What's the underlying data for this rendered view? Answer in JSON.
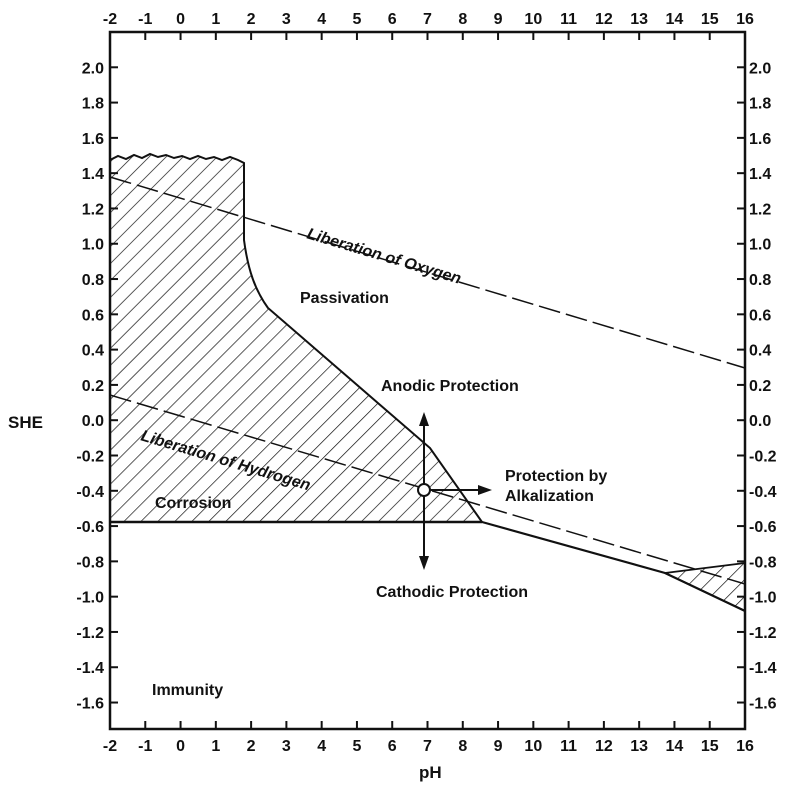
{
  "axes": {
    "x_title": "pH",
    "y_title": "SHE",
    "x_ticks": [
      "-2",
      "-1",
      "0",
      "1",
      "2",
      "3",
      "4",
      "5",
      "6",
      "7",
      "8",
      "9",
      "10",
      "11",
      "12",
      "13",
      "14",
      "15",
      "16"
    ],
    "y_ticks": [
      "2.0",
      "1.8",
      "1.6",
      "1.4",
      "1.2",
      "1.0",
      "0.8",
      "0.6",
      "0.4",
      "0.2",
      "0.0",
      "-0.2",
      "-0.4",
      "-0.6",
      "-0.8",
      "-1.0",
      "-1.2",
      "-1.4",
      "-1.6"
    ],
    "x_range": [
      -2,
      16
    ],
    "y_range": [
      -1.75,
      2.2
    ]
  },
  "regions": {
    "passivation": "Passivation",
    "corrosion": "Corrosion",
    "immunity": "Immunity",
    "anodic": "Anodic Protection",
    "cathodic": "Cathodic Protection",
    "alkalization_line1": "Protection by",
    "alkalization_line2": "Alkalization"
  },
  "lines": {
    "oxygen": "Liberation of Oxygen",
    "hydrogen": "Liberation of Hydrogen"
  },
  "chart_data": {
    "type": "diagram",
    "xlabel": "pH",
    "ylabel": "SHE",
    "xlim": [
      -2,
      16
    ],
    "ylim": [
      -1.75,
      2.2
    ],
    "oxygen_line": {
      "x": [
        -2,
        16
      ],
      "y": [
        1.35,
        0.3
      ]
    },
    "hydrogen_line": {
      "x": [
        -2,
        16
      ],
      "y": [
        0.12,
        -0.95
      ]
    },
    "corrosion_boundary": {
      "x": [
        1.8,
        1.8,
        2.4,
        7.2,
        9.0,
        13.5,
        16
      ],
      "y": [
        1.45,
        1.0,
        0.6,
        -0.2,
        -0.62,
        -0.88,
        -1.12
      ]
    },
    "corrosion_floor_y": -0.6,
    "test_point": {
      "x": 7.0,
      "y": -0.4
    }
  }
}
